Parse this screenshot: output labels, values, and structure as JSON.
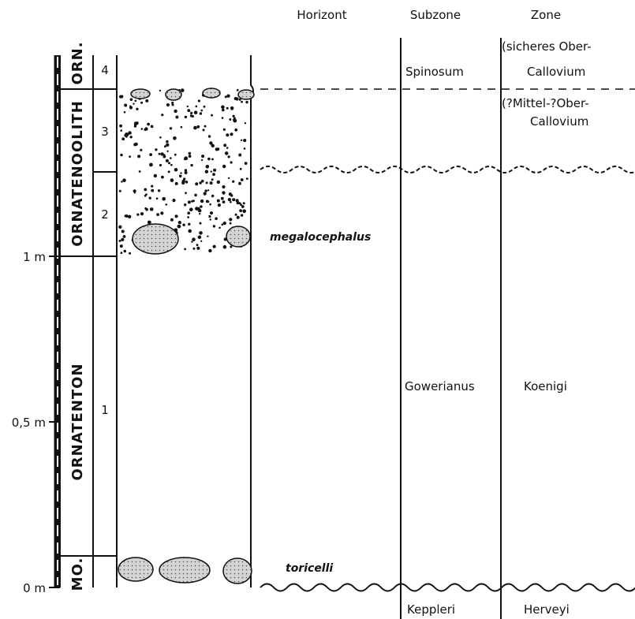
{
  "headers": {
    "horizont": "Horizont",
    "subzone": "Subzone",
    "zone": "Zone"
  },
  "scale": [
    "1 m",
    "0,5 m",
    "0 m"
  ],
  "units": [
    "ORN.",
    "ORNATENOOLITH",
    "ORNATENTON",
    "MO."
  ],
  "beds": [
    "4",
    "3",
    "2",
    "1"
  ],
  "horizons": [
    "megalocephalus",
    "toricelli"
  ],
  "subzones": [
    "Spinosum",
    "Gowerianus",
    "Keppleri"
  ],
  "zones": [
    "(sicheres Ober-",
    "Callovium",
    "(?Mittel-?Ober-",
    "Callovium",
    "Koenigi",
    "Herveyi"
  ]
}
